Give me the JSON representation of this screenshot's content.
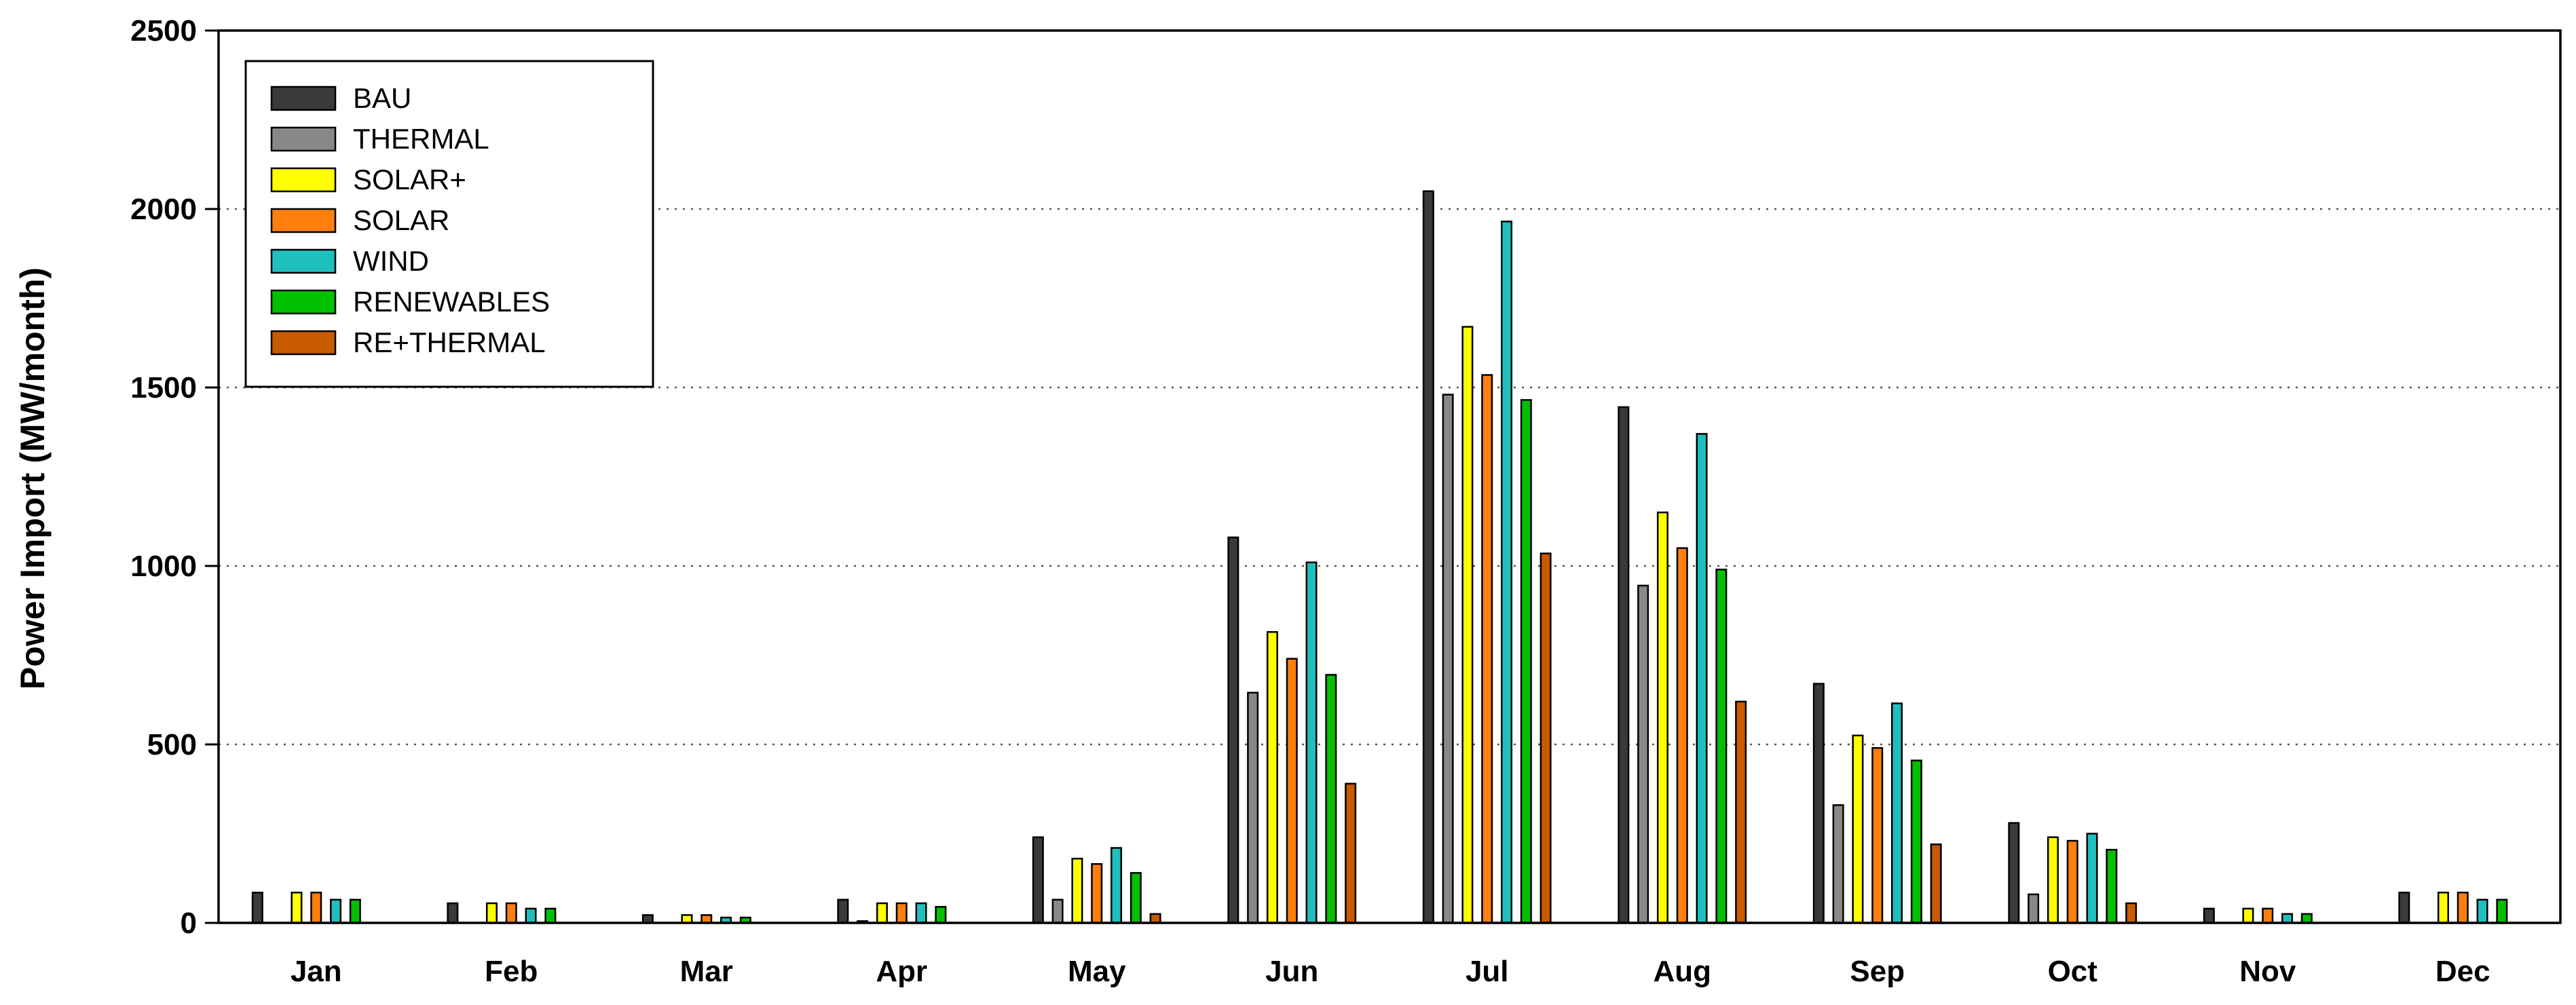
{
  "chart_data": {
    "type": "bar",
    "title": "",
    "xlabel": "",
    "ylabel": "Power Import (MW/month)",
    "ylim": [
      0,
      2500
    ],
    "yticks": [
      0,
      500,
      1000,
      1500,
      2000,
      2500
    ],
    "grid": "horizontal dotted",
    "legend_position": "top-left",
    "categories": [
      "Jan",
      "Feb",
      "Mar",
      "Apr",
      "May",
      "Jun",
      "Jul",
      "Aug",
      "Sep",
      "Oct",
      "Nov",
      "Dec"
    ],
    "series": [
      {
        "name": "BAU",
        "color": "#3a3a3a",
        "values": [
          85,
          55,
          22,
          65,
          240,
          1080,
          2050,
          1445,
          670,
          280,
          40,
          85
        ]
      },
      {
        "name": "THERMAL",
        "color": "#888888",
        "values": [
          0,
          0,
          0,
          5,
          65,
          645,
          1480,
          945,
          330,
          80,
          0,
          0
        ]
      },
      {
        "name": "SOLAR+",
        "color": "#ffff00",
        "values": [
          85,
          55,
          22,
          55,
          180,
          815,
          1670,
          1150,
          525,
          240,
          40,
          85
        ]
      },
      {
        "name": "SOLAR",
        "color": "#ff7f0e",
        "values": [
          85,
          55,
          22,
          55,
          165,
          740,
          1535,
          1050,
          490,
          230,
          40,
          85
        ]
      },
      {
        "name": "WIND",
        "color": "#1fbfbf",
        "values": [
          65,
          40,
          15,
          55,
          210,
          1010,
          1965,
          1370,
          615,
          250,
          25,
          65
        ]
      },
      {
        "name": "RENEWABLES",
        "color": "#00c000",
        "values": [
          65,
          40,
          15,
          45,
          140,
          695,
          1465,
          990,
          455,
          205,
          25,
          65
        ]
      },
      {
        "name": "RE+THERMAL",
        "color": "#c85a00",
        "values": [
          0,
          0,
          0,
          0,
          25,
          390,
          1035,
          620,
          220,
          55,
          0,
          0
        ]
      }
    ]
  }
}
